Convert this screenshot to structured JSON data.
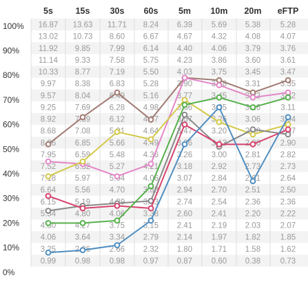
{
  "chart_data": {
    "type": "line",
    "columns": [
      "5s",
      "15s",
      "30s",
      "60s",
      "5m",
      "10m",
      "20m",
      "eFTP"
    ],
    "y_tick_labels": [
      "100%",
      "90%",
      "80%",
      "70%",
      "60%",
      "50%",
      "40%",
      "30%",
      "20%",
      "10%",
      "0%"
    ],
    "ylim": [
      0,
      100
    ],
    "table": [
      [
        "16.87",
        "13.63",
        "11.71",
        "8.24",
        "6.39",
        "5.69",
        "5.38",
        "5.28"
      ],
      [
        "13.02",
        "10.73",
        "8.60",
        "6.67",
        "4.67",
        "4.32",
        "4.08",
        "4.07"
      ],
      [
        "11.92",
        "9.85",
        "7.99",
        "6.14",
        "4.40",
        "4.06",
        "3.79",
        "3.76"
      ],
      [
        "11.14",
        "9.33",
        "7.58",
        "5.75",
        "4.23",
        "3.86",
        "3.60",
        "3.61"
      ],
      [
        "10.33",
        "8.77",
        "7.19",
        "5.50",
        "4.03",
        "3.75",
        "3.45",
        "3.47"
      ],
      [
        "9.97",
        "8.38",
        "6.83",
        "5.28",
        "3.90",
        "3.58",
        "3.31",
        "3.35"
      ],
      [
        "9.57",
        "8.04",
        "6.49",
        "5.16",
        "3.77",
        "3.45",
        "3.22",
        "3.22"
      ],
      [
        "9.25",
        "7.69",
        "6.28",
        "4.98",
        "3.66",
        "3.35",
        "3.16",
        "3.11"
      ],
      [
        "8.92",
        "7.39",
        "6.12",
        "4.77",
        "3.57",
        "3.26",
        "3.06",
        "3.04"
      ],
      [
        "8.68",
        "7.08",
        "5.91",
        "4.64",
        "3.47",
        "3.20",
        "2.98",
        "2.97"
      ],
      [
        "8.26",
        "6.85",
        "5.66",
        "4.49",
        "3.36",
        "3.13",
        "2.90",
        "2.90"
      ],
      [
        "7.95",
        "6.59",
        "5.48",
        "4.36",
        "3.26",
        "3.00",
        "2.81",
        "2.82"
      ],
      [
        "7.52",
        "6.32",
        "5.27",
        "4.21",
        "3.18",
        "2.92",
        "2.73",
        "2.73"
      ],
      [
        "7.18",
        "5.97",
        "5.04",
        "4.06",
        "3.07",
        "2.84",
        "2.61",
        "2.64"
      ],
      [
        "6.64",
        "5.56",
        "4.70",
        "3.88",
        "2.94",
        "2.70",
        "2.51",
        "2.50"
      ],
      [
        "6.15",
        "5.19",
        "4.39",
        "3.63",
        "2.74",
        "2.54",
        "2.36",
        "2.36"
      ],
      [
        "5.54",
        "4.80",
        "4.06",
        "3.38",
        "2.60",
        "2.41",
        "2.20",
        "2.22"
      ],
      [
        "4.80",
        "4.27",
        "3.75",
        "3.15",
        "2.41",
        "2.19",
        "2.03",
        "2.07"
      ],
      [
        "4.06",
        "3.64",
        "3.34",
        "2.79",
        "2.14",
        "1.97",
        "1.82",
        "1.85"
      ],
      [
        "3.25",
        "2.86",
        "2.66",
        "2.32",
        "1.80",
        "1.71",
        "1.58",
        "1.62"
      ],
      [
        "0.99",
        "0.98",
        "0.98",
        "0.97",
        "0.87",
        "0.60",
        "0.38",
        "0.73"
      ]
    ],
    "series": [
      {
        "color": "#a07a72",
        "values": [
          52,
          63,
          73,
          62,
          79,
          78,
          73,
          78
        ]
      },
      {
        "color": "#e386c8",
        "values": [
          45,
          44,
          39,
          44,
          79,
          76,
          71,
          73
        ]
      },
      {
        "color": "#d4c84a",
        "values": [
          39,
          45,
          57,
          54,
          70,
          61,
          56,
          60
        ]
      },
      {
        "color": "#888888",
        "values": [
          25,
          27,
          28,
          29,
          64,
          51,
          58,
          56
        ]
      },
      {
        "color": "#d6436e",
        "values": [
          31,
          26,
          27,
          26,
          60,
          52,
          52,
          58
        ]
      },
      {
        "color": "#55b04a",
        "values": [
          20,
          20,
          21,
          35,
          68,
          71,
          67,
          71
        ]
      },
      {
        "color": "#4f8ec1",
        "values": [
          8,
          9,
          11,
          21,
          52,
          67,
          37,
          63
        ]
      }
    ]
  }
}
